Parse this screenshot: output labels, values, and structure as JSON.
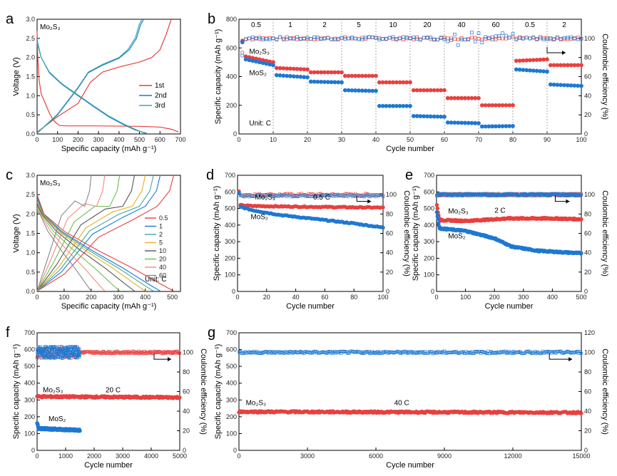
{
  "colors": {
    "red": "#e8403f",
    "blue": "#1e78d2",
    "teal": "#3fa9a5",
    "gold": "#e7b11c",
    "green": "#6abf4b",
    "gray": "#888888",
    "dark": "#555555",
    "salmon": "#ee8f7e"
  },
  "chart_data": [
    {
      "id": "a",
      "panel_label": "a",
      "type": "line",
      "xlabel": "Specific capacity (mAh g⁻¹)",
      "ylabel": "Voltage (V)",
      "xlim": [
        0,
        700
      ],
      "ylim": [
        0,
        3.0
      ],
      "xticks": [
        0,
        100,
        200,
        300,
        400,
        500,
        600,
        700
      ],
      "yticks": [
        0,
        0.5,
        1.0,
        1.5,
        2.0,
        2.5,
        3.0
      ],
      "material_label": "Mo₂S₃",
      "legend_position": "bottom-right",
      "series": [
        {
          "name": "1st",
          "color": "#e8403f",
          "discharge": [
            [
              0,
              2.7
            ],
            [
              3,
              2.0
            ],
            [
              10,
              1.4
            ],
            [
              20,
              1.05
            ],
            [
              40,
              0.8
            ],
            [
              60,
              0.55
            ],
            [
              75,
              0.4
            ],
            [
              90,
              0.3
            ],
            [
              110,
              0.22
            ],
            [
              150,
              0.21
            ],
            [
              300,
              0.21
            ],
            [
              500,
              0.2
            ],
            [
              600,
              0.18
            ],
            [
              660,
              0.12
            ],
            [
              690,
              0.05
            ]
          ],
          "charge": [
            [
              0,
              0.05
            ],
            [
              100,
              0.45
            ],
            [
              200,
              0.8
            ],
            [
              260,
              1.35
            ],
            [
              320,
              1.62
            ],
            [
              400,
              1.75
            ],
            [
              500,
              1.88
            ],
            [
              560,
              2.0
            ],
            [
              600,
              2.2
            ],
            [
              630,
              2.6
            ],
            [
              655,
              3.0
            ]
          ]
        },
        {
          "name": "2nd",
          "color": "#1e78d2",
          "discharge": [
            [
              0,
              2.45
            ],
            [
              20,
              2.0
            ],
            [
              60,
              1.6
            ],
            [
              120,
              1.3
            ],
            [
              200,
              1.0
            ],
            [
              280,
              0.7
            ],
            [
              350,
              0.45
            ],
            [
              420,
              0.25
            ],
            [
              480,
              0.1
            ],
            [
              535,
              0.02
            ]
          ],
          "charge": [
            [
              0,
              0.02
            ],
            [
              100,
              0.5
            ],
            [
              200,
              1.2
            ],
            [
              250,
              1.6
            ],
            [
              320,
              1.8
            ],
            [
              400,
              1.98
            ],
            [
              450,
              2.2
            ],
            [
              485,
              2.5
            ],
            [
              505,
              2.85
            ],
            [
              520,
              3.0
            ]
          ]
        },
        {
          "name": "3rd",
          "color": "#3fa9a5",
          "discharge": [
            [
              0,
              2.4
            ],
            [
              20,
              2.0
            ],
            [
              60,
              1.62
            ],
            [
              120,
              1.32
            ],
            [
              200,
              1.02
            ],
            [
              280,
              0.72
            ],
            [
              350,
              0.47
            ],
            [
              420,
              0.27
            ],
            [
              480,
              0.12
            ],
            [
              525,
              0.02
            ]
          ],
          "charge": [
            [
              0,
              0.02
            ],
            [
              100,
              0.52
            ],
            [
              200,
              1.22
            ],
            [
              250,
              1.62
            ],
            [
              320,
              1.82
            ],
            [
              400,
              2.0
            ],
            [
              445,
              2.22
            ],
            [
              480,
              2.52
            ],
            [
              498,
              2.85
            ],
            [
              512,
              3.0
            ]
          ]
        }
      ]
    },
    {
      "id": "b",
      "panel_label": "b",
      "type": "scatter",
      "xlabel": "Cycle number",
      "ylabel": "Specific capacity (mAh g⁻¹)",
      "y2label": "Coulombic efficiency (%)",
      "xlim": [
        0,
        100
      ],
      "ylim": [
        0,
        800
      ],
      "y2lim": [
        0,
        120
      ],
      "xticks": [
        0,
        10,
        20,
        30,
        40,
        50,
        60,
        70,
        80,
        90,
        100
      ],
      "yticks": [
        0,
        200,
        400,
        600,
        800
      ],
      "y2ticks": [
        0,
        20,
        40,
        60,
        80,
        100
      ],
      "rate_labels": [
        "0.5",
        "1",
        "2",
        "5",
        "10",
        "20",
        "40",
        "60",
        "0.5",
        "2"
      ],
      "unit_label": "Unit: C",
      "series_labels": [
        "Mo₂S₃",
        "MoS₂"
      ],
      "series": [
        {
          "name": "Mo₂S₃",
          "color": "#e8403f",
          "capacity_by_block": [
            [
              1,
              650
            ],
            [
              2,
              540
            ],
            [
              10,
              500
            ],
            [
              11,
              460
            ],
            [
              20,
              450
            ],
            [
              21,
              430
            ],
            [
              30,
              430
            ],
            [
              31,
              405
            ],
            [
              40,
              405
            ],
            [
              41,
              360
            ],
            [
              50,
              360
            ],
            [
              51,
              305
            ],
            [
              60,
              305
            ],
            [
              61,
              250
            ],
            [
              70,
              250
            ],
            [
              71,
              200
            ],
            [
              80,
              200
            ],
            [
              81,
              510
            ],
            [
              90,
              520
            ],
            [
              91,
              480
            ],
            [
              100,
              480
            ]
          ],
          "ce": 100
        },
        {
          "name": "MoS₂",
          "color": "#1e78d2",
          "capacity_by_block": [
            [
              1,
              640
            ],
            [
              2,
              520
            ],
            [
              10,
              480
            ],
            [
              11,
              410
            ],
            [
              20,
              395
            ],
            [
              21,
              365
            ],
            [
              30,
              360
            ],
            [
              31,
              305
            ],
            [
              40,
              300
            ],
            [
              41,
              195
            ],
            [
              50,
              195
            ],
            [
              51,
              125
            ],
            [
              60,
              120
            ],
            [
              61,
              80
            ],
            [
              70,
              75
            ],
            [
              71,
              52
            ],
            [
              80,
              55
            ],
            [
              81,
              450
            ],
            [
              90,
              435
            ],
            [
              91,
              345
            ],
            [
              100,
              335
            ]
          ],
          "ce": 100
        }
      ]
    },
    {
      "id": "c",
      "panel_label": "c",
      "type": "line",
      "xlabel": "Specific capacity (mAh g⁻¹)",
      "ylabel": "Voltage (V)",
      "xlim": [
        0,
        530
      ],
      "ylim": [
        0,
        3.0
      ],
      "xticks": [
        0,
        100,
        200,
        300,
        400,
        500
      ],
      "yticks": [
        0,
        0.5,
        1.0,
        1.5,
        2.0,
        2.5,
        3.0
      ],
      "material_label": "Mo₂S₃",
      "unit_label": "Unit: C",
      "series": [
        {
          "name": "0.5",
          "color": "#e8403f",
          "cap": 505
        },
        {
          "name": "1",
          "color": "#1e78d2",
          "cap": 455
        },
        {
          "name": "2",
          "color": "#3fa9a5",
          "cap": 430
        },
        {
          "name": "5",
          "color": "#e7b11c",
          "cap": 400
        },
        {
          "name": "10",
          "color": "#555555",
          "cap": 360
        },
        {
          "name": "20",
          "color": "#6abf4b",
          "cap": 305
        },
        {
          "name": "40",
          "color": "#ee8f7e",
          "cap": 250
        },
        {
          "name": "60",
          "color": "#888888",
          "cap": 200
        }
      ]
    },
    {
      "id": "d",
      "panel_label": "d",
      "type": "scatter",
      "xlabel": "Cycle number",
      "ylabel": "Specific capacity (mAh g⁻¹)",
      "y2label": "Coulombic efficiency (%)",
      "xlim": [
        0,
        100
      ],
      "ylim": [
        0,
        700
      ],
      "y2lim": [
        0,
        120
      ],
      "xticks": [
        0,
        20,
        40,
        60,
        80,
        100
      ],
      "yticks": [
        0,
        100,
        200,
        300,
        400,
        500,
        600,
        700
      ],
      "y2ticks": [
        0,
        20,
        40,
        60,
        80,
        100
      ],
      "rate_label": "0.5 C",
      "series_labels": [
        "Mo₂S₃",
        "MoS₂"
      ],
      "series": [
        {
          "name": "Mo₂S₃",
          "color": "#e8403f",
          "capacity": [
            [
              1,
              600
            ],
            [
              2,
              520
            ],
            [
              10,
              515
            ],
            [
              50,
              510
            ],
            [
              100,
              505
            ]
          ],
          "ce": 100
        },
        {
          "name": "MoS₂",
          "color": "#1e78d2",
          "capacity": [
            [
              1,
              590
            ],
            [
              2,
              510
            ],
            [
              10,
              490
            ],
            [
              30,
              460
            ],
            [
              60,
              430
            ],
            [
              80,
              410
            ],
            [
              100,
              385
            ]
          ],
          "ce": 99
        }
      ]
    },
    {
      "id": "e",
      "panel_label": "e",
      "type": "scatter",
      "xlabel": "Cycle number",
      "ylabel": "Specific capacity (mAh g⁻¹)",
      "y2label": "Coulombic efficiency (%)",
      "xlim": [
        0,
        500
      ],
      "ylim": [
        0,
        700
      ],
      "y2lim": [
        0,
        120
      ],
      "xticks": [
        0,
        100,
        200,
        300,
        400,
        500
      ],
      "yticks": [
        0,
        100,
        200,
        300,
        400,
        500,
        600,
        700
      ],
      "y2ticks": [
        0,
        20,
        40,
        60,
        80,
        100
      ],
      "rate_label": "2 C",
      "series_labels": [
        "Mo₂S₃",
        "MoS₂"
      ],
      "series": [
        {
          "name": "Mo₂S₃",
          "color": "#e8403f",
          "capacity": [
            [
              1,
              520
            ],
            [
              10,
              430
            ],
            [
              100,
              425
            ],
            [
              250,
              440
            ],
            [
              400,
              440
            ],
            [
              500,
              435
            ]
          ],
          "ce": 100
        },
        {
          "name": "MoS₂",
          "color": "#1e78d2",
          "capacity": [
            [
              1,
              480
            ],
            [
              10,
              380
            ],
            [
              100,
              365
            ],
            [
              200,
              320
            ],
            [
              260,
              270
            ],
            [
              350,
              245
            ],
            [
              500,
              230
            ]
          ],
          "ce": 100
        }
      ]
    },
    {
      "id": "f",
      "panel_label": "f",
      "type": "scatter",
      "xlabel": "Cycle number",
      "ylabel": "Specific capacity (mAh g⁻¹)",
      "y2label": "Coulombic efficiency (%)",
      "xlim": [
        0,
        5000
      ],
      "ylim": [
        0,
        700
      ],
      "y2lim": [
        0,
        120
      ],
      "xticks": [
        0,
        1000,
        2000,
        3000,
        4000,
        5000
      ],
      "yticks": [
        0,
        100,
        200,
        300,
        400,
        500,
        600,
        700
      ],
      "y2ticks": [
        0,
        20,
        40,
        60,
        80,
        100
      ],
      "rate_label": "20 C",
      "series_labels": [
        "Mo₂S₃",
        "MoS₂"
      ],
      "series": [
        {
          "name": "Mo₂S₃",
          "color": "#e8403f",
          "capacity": [
            [
              1,
              320
            ],
            [
              5000,
              315
            ]
          ],
          "ce": 100
        },
        {
          "name": "MoS₂",
          "color": "#1e78d2",
          "capacity": [
            [
              1,
              165
            ],
            [
              50,
              130
            ],
            [
              1500,
              120
            ]
          ],
          "ce": 100
        }
      ]
    },
    {
      "id": "g",
      "panel_label": "g",
      "type": "scatter",
      "xlabel": "Cycle number",
      "ylabel": "Specific capacity (mAh g⁻¹)",
      "y2label": "Coulombic efficiency (%)",
      "xlim": [
        0,
        15000
      ],
      "ylim": [
        0,
        700
      ],
      "y2lim": [
        0,
        120
      ],
      "xticks": [
        0,
        3000,
        6000,
        9000,
        12000,
        15000
      ],
      "yticks": [
        0,
        100,
        200,
        300,
        400,
        500,
        600,
        700
      ],
      "y2ticks": [
        0,
        20,
        40,
        60,
        80,
        100,
        120
      ],
      "rate_label": "40 C",
      "material_label": "Mo₂S₃",
      "series": [
        {
          "name": "Mo₂S₃",
          "color": "#e8403f",
          "capacity": [
            [
              1,
              230
            ],
            [
              15000,
              225
            ]
          ],
          "ce": 100,
          "ce_color": "#1e78d2"
        }
      ]
    }
  ]
}
